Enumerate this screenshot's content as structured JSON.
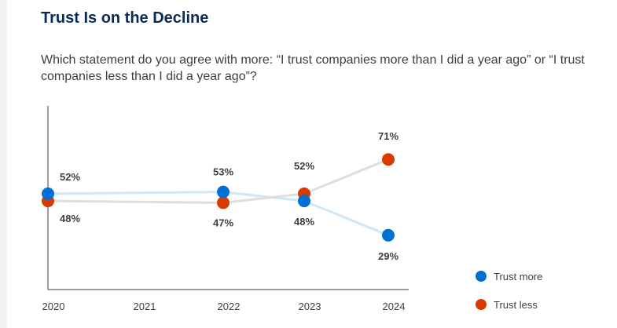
{
  "chart_data": {
    "type": "line",
    "title": "Trust Is on the Decline",
    "subtitle": "Which statement do you agree with more: “I trust companies more than I did a year ago” or “I trust companies less than I did a year ago”?",
    "x": [
      "2020",
      "2021",
      "2022",
      "2023",
      "2024"
    ],
    "ylim": [
      0,
      100
    ],
    "grid": false,
    "legend_position": "bottom-right",
    "series": [
      {
        "name": "Trust more",
        "color": "#0070d2",
        "line_color": "#cfe6f7",
        "points": [
          {
            "x": "2020",
            "value": 52,
            "label": "52%"
          },
          {
            "x": "2022",
            "value": 53,
            "label": "53%"
          },
          {
            "x": "2023",
            "value": 48,
            "label": "48%"
          },
          {
            "x": "2024",
            "value": 29,
            "label": "29%"
          }
        ]
      },
      {
        "name": "Trust less",
        "color": "#d83a00",
        "line_color": "#dedede",
        "points": [
          {
            "x": "2020",
            "value": 48,
            "label": "48%"
          },
          {
            "x": "2022",
            "value": 47,
            "label": "47%"
          },
          {
            "x": "2023",
            "value": 52,
            "label": "52%"
          },
          {
            "x": "2024",
            "value": 71,
            "label": "71%"
          }
        ]
      }
    ]
  }
}
